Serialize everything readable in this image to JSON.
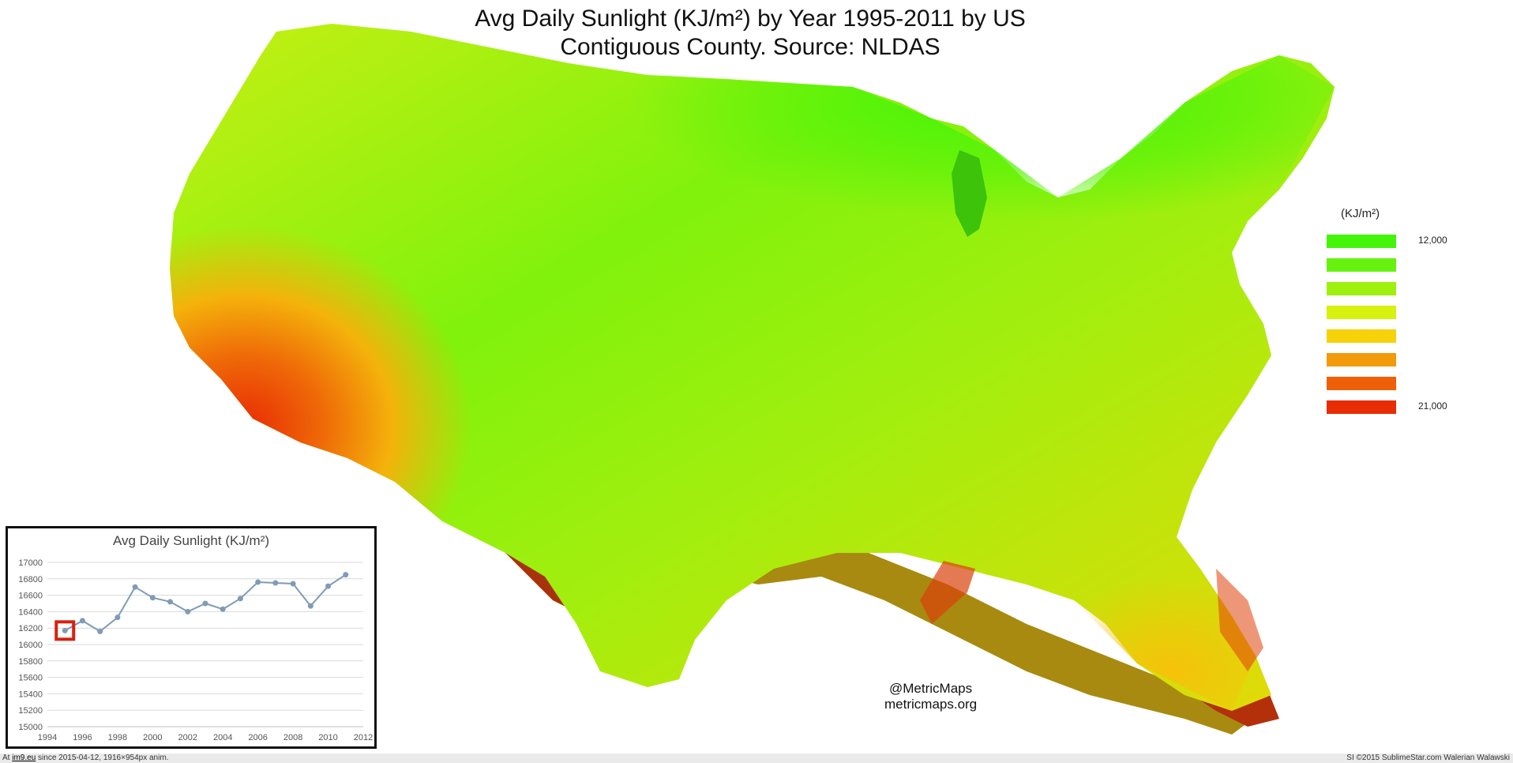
{
  "title": {
    "line1": "Avg Daily Sunlight (KJ/m²) by Year 1995-2011 by US",
    "line2": "Contiguous County. Source: NLDAS"
  },
  "legend": {
    "unit": "(KJ/m²)",
    "swatches": [
      "#44f50a",
      "#66f20f",
      "#9ef10f",
      "#d6f20e",
      "#f6d20a",
      "#f29a0a",
      "#ee5f07",
      "#e82c05"
    ],
    "min_label": "12,000",
    "max_label": "21,000"
  },
  "credit": {
    "handle": "@MetricMaps",
    "site": "metricmaps.org"
  },
  "inset_chart": {
    "type": "line",
    "title": "Avg Daily Sunlight (KJ/m²)",
    "x": [
      1995,
      1996,
      1997,
      1998,
      1999,
      2000,
      2001,
      2002,
      2003,
      2004,
      2005,
      2006,
      2007,
      2008,
      2009,
      2010,
      2011
    ],
    "values": [
      16170,
      16290,
      16160,
      16330,
      16700,
      16570,
      16520,
      16400,
      16500,
      16430,
      16560,
      16760,
      16750,
      16740,
      16470,
      16710,
      16850
    ],
    "xlim": [
      1994,
      2012
    ],
    "ylim": [
      15000,
      17000
    ],
    "xticks": [
      "1994",
      "1996",
      "1998",
      "2000",
      "2002",
      "2004",
      "2006",
      "2008",
      "2010",
      "2012"
    ],
    "yticks": [
      "15000",
      "15200",
      "15400",
      "15600",
      "15800",
      "16000",
      "16200",
      "16400",
      "16600",
      "16800",
      "17000"
    ],
    "highlight_year": 1995,
    "line_color": "#7f9bb6",
    "highlight_color": "#d9200e"
  },
  "footer": {
    "prefix": "At",
    "site": "im9.eu",
    "rest": "since 2015-04-12, 1916×954px anim.",
    "right": "SI ©2015 SublimeStar.com Walerian Walawski"
  }
}
